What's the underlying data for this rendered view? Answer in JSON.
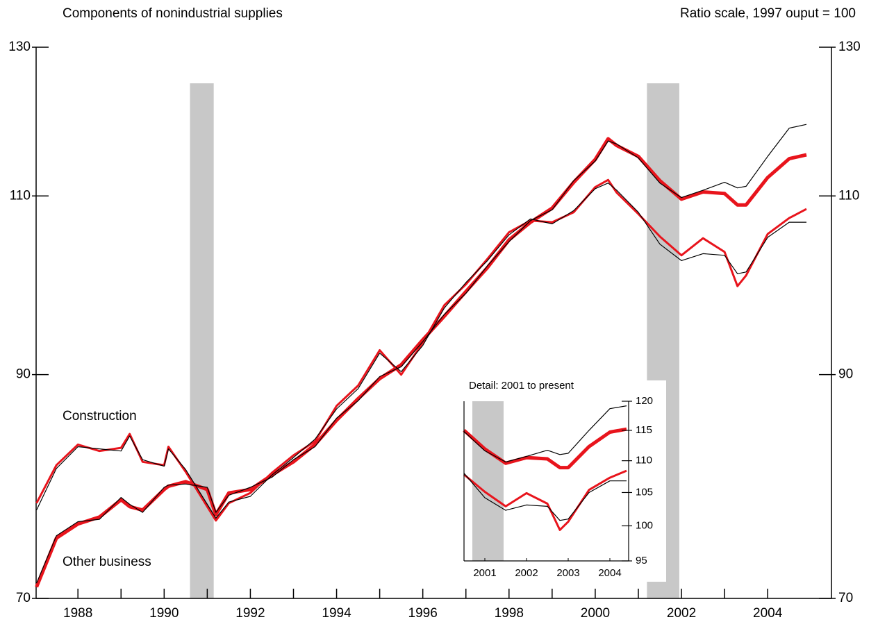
{
  "chart_data": {
    "type": "line",
    "title": "Components of nonindustrial supplies",
    "subtitle": "Ratio scale, 1997 ouput = 100",
    "log_scale": true,
    "x": [
      1987.04,
      1987.5,
      1988,
      1988.5,
      1989,
      1989.2,
      1989.5,
      1990,
      1990.1,
      1990.5,
      1991,
      1991.2,
      1991.5,
      1992,
      1992.5,
      1993,
      1993.5,
      1994,
      1994.5,
      1995,
      1995.5,
      1996,
      1996.5,
      1997,
      1997.5,
      1998,
      1998.5,
      1999,
      1999.5,
      2000,
      2000.3,
      2000.5,
      2001,
      2001.5,
      2002,
      2002.5,
      2003,
      2003.3,
      2003.5,
      2004,
      2004.5,
      2004.9
    ],
    "series": [
      {
        "name": "Construction",
        "color": "#e8141c",
        "values": [
          77.9,
          81.3,
          83.2,
          82.6,
          82.9,
          84.2,
          81.6,
          81.3,
          83.0,
          80.7,
          77.6,
          76.4,
          77.9,
          78.8,
          80.6,
          82.2,
          83.5,
          86.9,
          88.9,
          92.5,
          90.0,
          93.3,
          97.3,
          99.6,
          102.5,
          105.6,
          107.0,
          106.8,
          108.0,
          111.1,
          112.0,
          110.4,
          107.8,
          105.1,
          102.9,
          104.9,
          103.3,
          99.4,
          100.6,
          105.4,
          107.3,
          108.4
        ]
      },
      {
        "color": "#000000",
        "values": [
          77.3,
          81.0,
          83.0,
          82.8,
          82.6,
          84.0,
          81.8,
          81.2,
          82.8,
          80.9,
          77.8,
          76.6,
          78.0,
          78.5,
          80.4,
          82.0,
          83.7,
          86.6,
          88.6,
          92.2,
          90.3,
          93.0,
          97.0,
          99.8,
          102.3,
          105.3,
          107.2,
          106.6,
          108.2,
          110.9,
          111.6,
          110.7,
          108.0,
          104.2,
          102.3,
          103.1,
          102.9,
          100.8,
          101.0,
          105.0,
          106.8,
          106.8
        ]
      },
      {
        "name": "Other business",
        "color": "#e8141c",
        "values": [
          70.9,
          74.9,
          76.1,
          76.7,
          78.2,
          77.6,
          77.3,
          79.1,
          79.4,
          79.8,
          79.1,
          76.9,
          78.8,
          79.1,
          80.4,
          81.6,
          83.2,
          85.5,
          87.6,
          89.6,
          91.0,
          93.6,
          96.1,
          98.8,
          101.5,
          104.7,
          106.8,
          108.5,
          111.7,
          114.6,
          117.3,
          116.4,
          115.0,
          111.9,
          109.6,
          110.5,
          110.3,
          108.9,
          108.9,
          112.3,
          114.7,
          115.2
        ]
      },
      {
        "color": "#000000",
        "values": [
          71.2,
          75.1,
          76.3,
          76.5,
          78.4,
          77.8,
          77.1,
          79.3,
          79.5,
          79.6,
          79.3,
          77.1,
          78.6,
          79.3,
          80.2,
          81.8,
          83.0,
          85.7,
          87.4,
          89.8,
          90.8,
          93.4,
          96.3,
          98.6,
          101.7,
          104.5,
          107.0,
          108.3,
          111.9,
          114.4,
          117.0,
          116.6,
          114.8,
          111.6,
          109.8,
          110.7,
          111.7,
          111.0,
          111.2,
          115.0,
          118.7,
          119.2
        ]
      }
    ],
    "xlim": [
      1987.03,
      2005.48
    ],
    "xticks": [
      1988,
      1990,
      1992,
      1994,
      1996,
      1998,
      2000,
      2002,
      2004
    ],
    "xminor_ticks": [
      1989,
      1991,
      1993,
      1995,
      1997,
      1999,
      2001,
      2003
    ],
    "ylim": [
      70,
      130
    ],
    "yticks": [
      70,
      90,
      110,
      130
    ],
    "recessions": [
      [
        1990.6,
        1991.15
      ],
      [
        2001.2,
        2001.95
      ]
    ],
    "inset": {
      "title": "Detail: 2001 to present",
      "xlim": [
        2001,
        2004.95
      ],
      "xticks": [
        {
          "value": 2001.5,
          "label": "2001"
        },
        {
          "value": 2002.5,
          "label": "2002"
        },
        {
          "value": 2003.5,
          "label": "2003"
        },
        {
          "value": 2004.5,
          "label": "2004"
        }
      ],
      "ylim": [
        95,
        120
      ],
      "yticks": [
        95,
        100,
        105,
        110,
        115,
        120
      ]
    }
  }
}
